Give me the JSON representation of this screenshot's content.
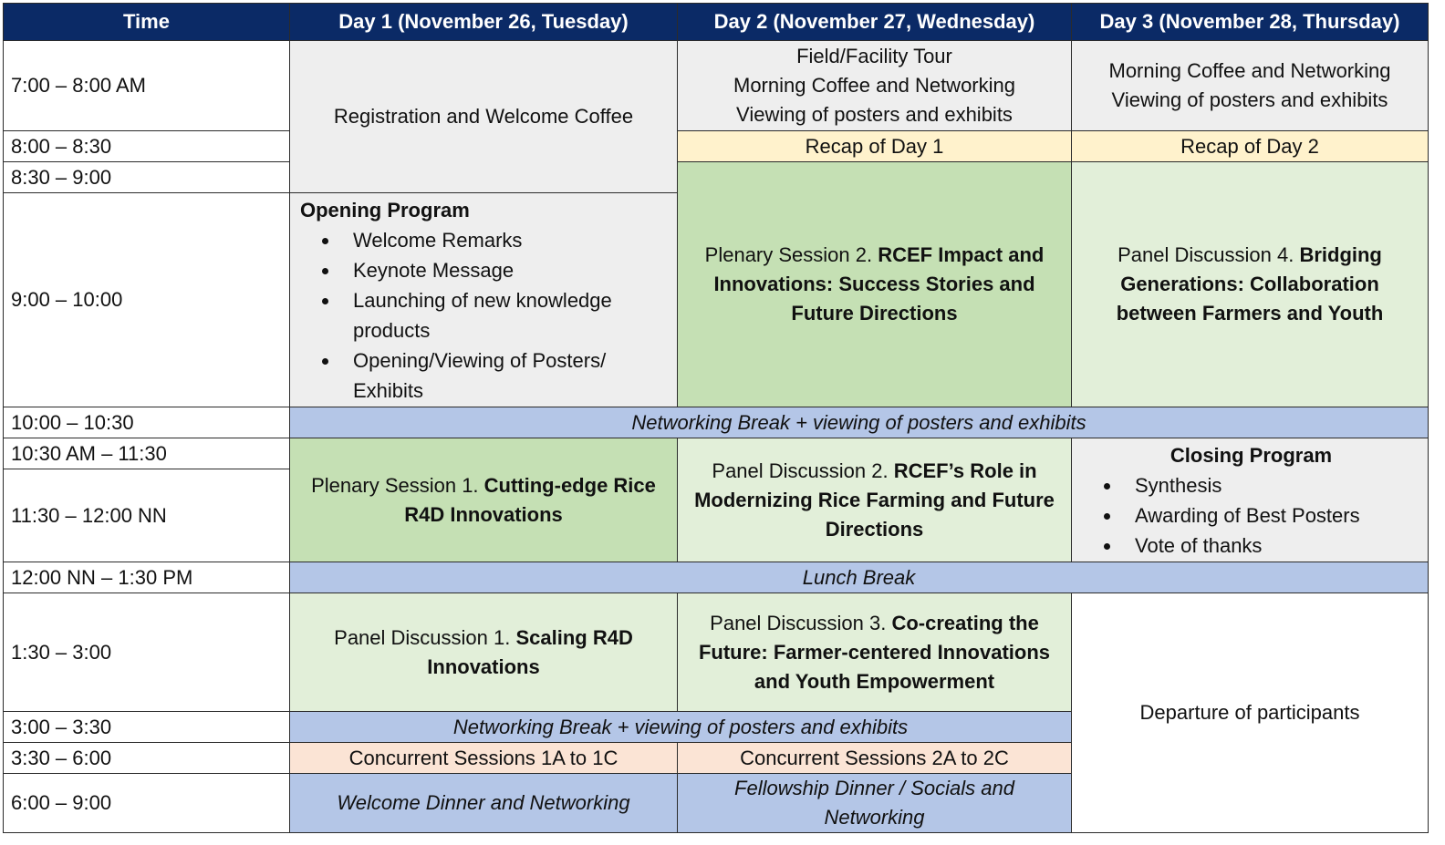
{
  "headers": {
    "time": "Time",
    "day1": "Day 1 (November 26, Tuesday)",
    "day2": "Day 2 (November 27, Wednesday)",
    "day3": "Day 3 (November 28, Thursday)"
  },
  "times": [
    "7:00 – 8:00 AM",
    "8:00 – 8:30",
    "8:30 – 9:00",
    "9:00 – 10:00",
    "10:00 – 10:30",
    "10:30 AM – 11:30",
    "11:30 – 12:00 NN",
    "12:00 NN – 1:30 PM",
    "1:30 – 3:00",
    "3:00 – 3:30",
    "3:30 – 6:00",
    "6:00 – 9:00"
  ],
  "day1": {
    "registration": "Registration and Welcome Coffee",
    "opening_title": "Opening Program",
    "opening_items": [
      "Welcome Remarks",
      "Keynote Message",
      "Launching of new knowledge products",
      "Opening/Viewing of Posters/ Exhibits"
    ],
    "plenary1_prefix": "Plenary Session 1. ",
    "plenary1_title": "Cutting-edge Rice R4D Innovations",
    "panel1_prefix": "Panel Discussion 1. ",
    "panel1_title": "Scaling R4D Innovations",
    "concurrent": "Concurrent Sessions 1A to 1C",
    "dinner": "Welcome Dinner and Networking"
  },
  "day2": {
    "morning_lines": [
      "Field/Facility Tour",
      "Morning Coffee and Networking",
      "Viewing of posters and exhibits"
    ],
    "recap": "Recap of Day 1",
    "plenary2_prefix": "Plenary Session 2. ",
    "plenary2_title": "RCEF Impact and Innovations: Success Stories and Future Directions",
    "panel2_prefix": "Panel Discussion 2. ",
    "panel2_title": "RCEF’s Role in Modernizing Rice Farming and Future Directions",
    "panel3_prefix": "Panel Discussion 3. ",
    "panel3_title": "Co-creating the Future: Farmer-centered Innovations and Youth Empowerment",
    "concurrent": "Concurrent Sessions 2A to 2C",
    "dinner": "Fellowship Dinner / Socials and Networking"
  },
  "day3": {
    "morning_lines": [
      "Morning Coffee and Networking",
      "Viewing of posters and exhibits"
    ],
    "recap": "Recap of Day 2",
    "panel4_prefix": "Panel Discussion 4. ",
    "panel4_title": "Bridging Generations: Collaboration between Farmers and Youth",
    "closing_title": "Closing Program",
    "closing_items": [
      "Synthesis",
      "Awarding of Best Posters",
      "Vote of thanks"
    ],
    "departure": "Departure of participants"
  },
  "shared": {
    "break_morning": "Networking Break + viewing of posters and exhibits",
    "lunch": "Lunch Break",
    "break_afternoon": "Networking Break + viewing of posters and exhibits"
  },
  "colors": {
    "header_bg": "#0b2a66",
    "grey": "#eeeeee",
    "recap_yellow": "#fff2cc",
    "plenary_green": "#c5e0b4",
    "panel_light_green": "#e2efd9",
    "break_blue": "#b4c6e7",
    "concurrent_peach": "#fbe4d5"
  }
}
